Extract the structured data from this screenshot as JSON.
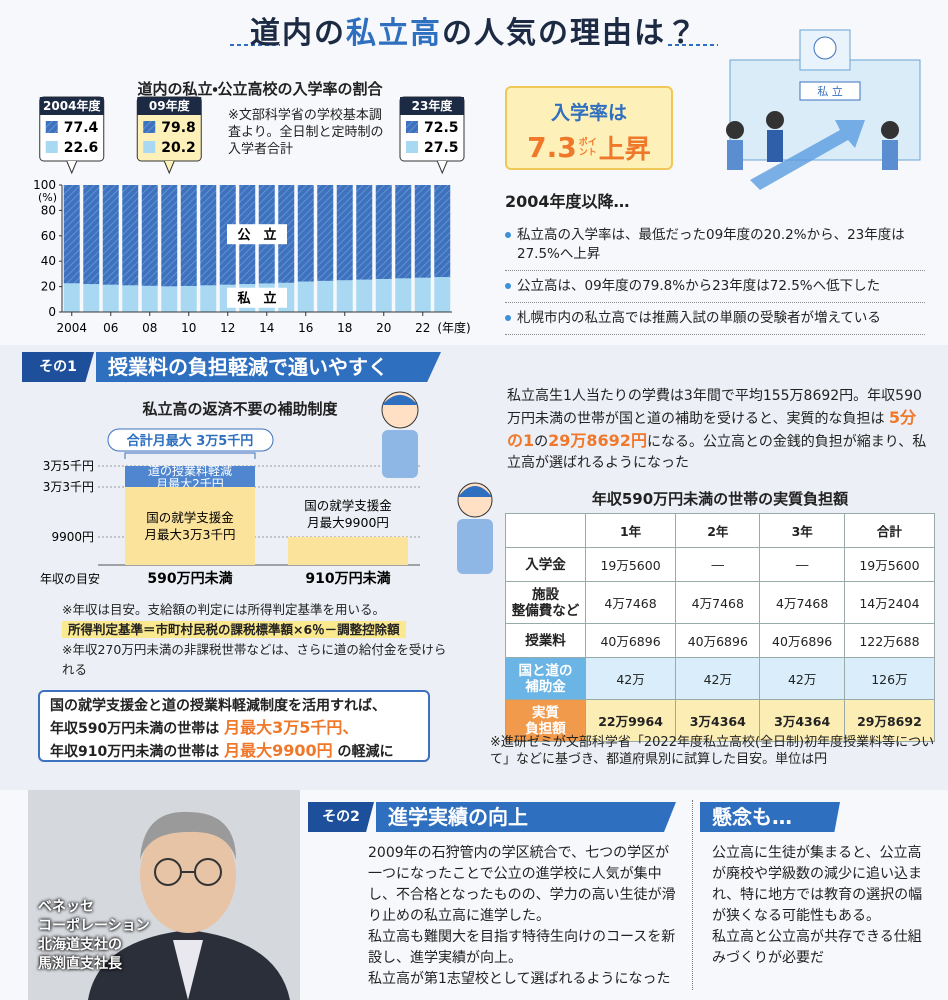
{
  "header": {
    "title": [
      "道内の",
      "私立高",
      "の人気の理由は？"
    ]
  },
  "chart_data": {
    "type": "bar",
    "stacked": true,
    "title": "道内の私立・公立高校の入学率の割合",
    "note": "※文部科学省の学校基本調査より。全日制と定時制の入学者合計",
    "x": [
      2004,
      2005,
      2006,
      2007,
      2008,
      2009,
      2010,
      2011,
      2012,
      2013,
      2014,
      2015,
      2016,
      2017,
      2018,
      2019,
      2020,
      2021,
      2022,
      2023
    ],
    "xlim": [
      2003.5,
      2023.5
    ],
    "xticks": [
      {
        "value": 2004,
        "label": "2004"
      },
      {
        "value": 2006,
        "label": "06"
      },
      {
        "value": 2008,
        "label": "08"
      },
      {
        "value": 2010,
        "label": "10"
      },
      {
        "value": 2012,
        "label": "12"
      },
      {
        "value": 2014,
        "label": "14"
      },
      {
        "value": 2016,
        "label": "16"
      },
      {
        "value": 2018,
        "label": "18"
      },
      {
        "value": 2020,
        "label": "20"
      },
      {
        "value": 2022,
        "label": "22"
      }
    ],
    "x_label": "(年度)",
    "y_label": "(%)",
    "ylim": [
      0,
      100
    ],
    "yticks": [
      0,
      20,
      40,
      60,
      80,
      100
    ],
    "series": [
      {
        "name": "私　立",
        "color": "#a8d8f2",
        "values": [
          22.6,
          22,
          21.5,
          21,
          20.6,
          20.2,
          20.5,
          21,
          21.5,
          22,
          22.5,
          23,
          24,
          24.5,
          25,
          25.5,
          26,
          26.5,
          27,
          27.5
        ]
      },
      {
        "name": "公　立",
        "color": "#3d72bf",
        "hatch": true,
        "values": [
          77.4,
          78,
          78.5,
          79,
          79.4,
          79.8,
          79.5,
          79,
          78.5,
          78,
          77.5,
          77,
          76,
          75.5,
          75,
          74.5,
          74,
          73.5,
          73,
          72.5
        ]
      }
    ],
    "annotations": [
      {
        "text": "2004年度",
        "x": 2004
      },
      {
        "text": "09年度",
        "x": 2009,
        "highlight": true
      },
      {
        "text": "23年度",
        "x": 2023
      }
    ]
  },
  "highlight": {
    "line1": "入学率は",
    "number": "7.3",
    "unit_top": "ポイ",
    "unit_bottom": "ント",
    "suffix": "上昇"
  },
  "school_sign": "私 立",
  "summary": {
    "heading": "2004年度以降…",
    "bullets": [
      "私立高の入学率は、最低だった09年度の20.2%から、23年度は27.5%へ上昇",
      "公立高は、09年度の79.8%から23年度は72.5%へ低下した",
      "札幌市内の私立高では推薦入試の単願の受験者が増えている"
    ]
  },
  "section1": {
    "badge": "その1",
    "title": "授業料の負担軽減で通いやすく",
    "aid": {
      "title": "私立高の返済不要の補助制度",
      "total": "合計月最大 3万5千円",
      "levels": [
        "3万5千円",
        "3万3千円",
        "9900円"
      ],
      "income_label": "年収の目安",
      "columns": [
        {
          "label": "590万円未満",
          "segments": [
            [
              "道の授業料軽減",
              "月最大2千円"
            ],
            [
              "国の就学支援金",
              "月最大3万3千円"
            ]
          ]
        },
        {
          "label": "910万円未満",
          "segments": [
            [
              "国の就学支援金",
              "月最大9900円"
            ]
          ]
        }
      ]
    },
    "notes": [
      "※年収は目安。支給額の判定には所得判定基準を用いる。",
      "所得判定基準＝市町村民税の課税標準額×6％－調整控除額",
      "※年収270万円未満の非課税世帯などは、さらに道の給付金を受けられる"
    ],
    "callout": [
      [
        "国の就学支援金と道の授業料軽減制度を活用すれば、"
      ],
      [
        "年収590万円未満の世帯は",
        "月最大3万5千円、"
      ],
      [
        "年収910万円未満の世帯は",
        "月最大9900円",
        "の軽減に"
      ]
    ],
    "paragraph": [
      "私立高生1人当たりの学費は3年間で平均155万8692円。年収590万円未満の世帯が国と道の補助を受けると、実質的な負担は",
      "5分の1",
      "の",
      "29万8692円",
      "になる。公立高との金銭的負担が縮まり、私立高が選ばれるようになった"
    ],
    "table": {
      "title": "年収590万円未満の世帯の実質負担額",
      "header": [
        "1年",
        "2年",
        "3年",
        "合計"
      ],
      "rows": [
        {
          "label": [
            "入学金"
          ],
          "cells": [
            "19万5600",
            "―",
            "―",
            "19万5600"
          ]
        },
        {
          "label": [
            "施設",
            "整備費など"
          ],
          "cells": [
            "4万7468",
            "4万7468",
            "4万7468",
            "14万2404"
          ]
        },
        {
          "label": [
            "授業料"
          ],
          "cells": [
            "40万6896",
            "40万6896",
            "40万6896",
            "122万688"
          ]
        },
        {
          "label": [
            "国と道の",
            "補助金"
          ],
          "cells": [
            "42万",
            "42万",
            "42万",
            "126万"
          ]
        },
        {
          "label": [
            "実質",
            "負担額"
          ],
          "cells": [
            "22万9964",
            "3万4364",
            "3万4364",
            "29万8692"
          ]
        }
      ],
      "note": "※進研ゼミが文部科学省「2022年度私立高校(全日制)初年度授業料等について」などに基づき、都道府県別に試算した目安。単位は円"
    }
  },
  "person": [
    "ベネッセ",
    "コーポレーション",
    "北海道支社の",
    "馬渕直支社長"
  ],
  "section2": {
    "badge": "その2",
    "title": "進学実績の向上",
    "body": [
      "2009年の石狩管内の学区統合で、七つの学区が一つになったことで公立の進学校に人気が集中し、不合格となったものの、学力の高い生徒が滑り止めの私立高に進学した。",
      "私立高も難関大を目指す特待生向けのコースを新設し、進学実績が向上。",
      "私立高が第1志望校として選ばれるようになった"
    ]
  },
  "concern": {
    "title": "懸念も…",
    "body": [
      "公立高に生徒が集まると、公立高が廃校や学級数の減少に追い込まれ、特に地方では教育の選択の幅が狭くなる可能性もある。",
      "私立高と公立高が共存できる仕組みづくりが必要だ"
    ]
  }
}
